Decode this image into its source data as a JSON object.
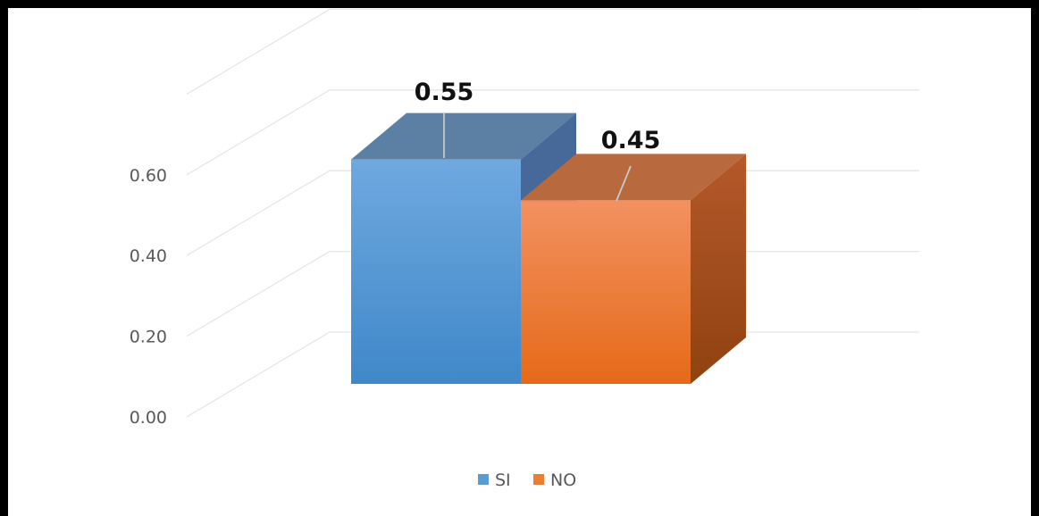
{
  "chart_data": {
    "type": "bar",
    "style": "3d-clustered-column",
    "categories": [
      "SI",
      "NO"
    ],
    "values": [
      0.55,
      0.45
    ],
    "data_labels": [
      "0.55",
      "0.45"
    ],
    "ylim": [
      0,
      0.8
    ],
    "yticks": [
      "0.00",
      "0.20",
      "0.40",
      "0.60"
    ],
    "grid": true,
    "legend": {
      "position": "bottom",
      "entries": [
        {
          "label": "SI",
          "color": "#5B9BD5"
        },
        {
          "label": "NO",
          "color": "#ED7D31"
        }
      ]
    },
    "colors": {
      "SI": {
        "front": "#5B9BD5",
        "top": "#5B80A3",
        "side": "#46699A"
      },
      "NO": {
        "front": "#ED7D31",
        "top": "#B8693E",
        "side": "#A04E1A"
      },
      "gridline": "#E6E6E6",
      "border": "#000000"
    }
  }
}
